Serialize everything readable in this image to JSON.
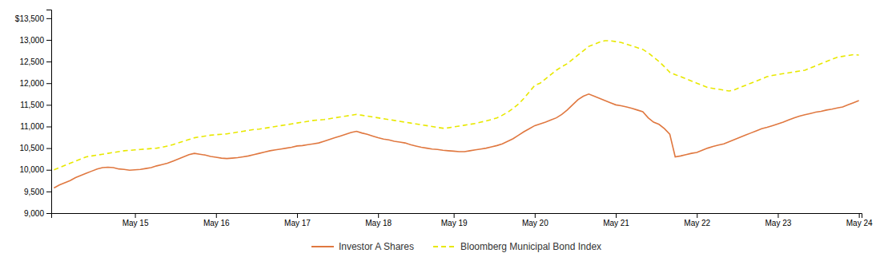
{
  "chart_data": {
    "type": "line",
    "categories": [
      null,
      null,
      null,
      null,
      null,
      null,
      null,
      null,
      null,
      null,
      null,
      null,
      null,
      null,
      null,
      "May 15",
      null,
      null,
      null,
      null,
      null,
      null,
      null,
      null,
      null,
      null,
      null,
      null,
      null,
      null,
      "May 16",
      null,
      null,
      null,
      null,
      null,
      null,
      null,
      null,
      null,
      null,
      null,
      null,
      null,
      null,
      "May 17",
      null,
      null,
      null,
      null,
      null,
      null,
      null,
      null,
      null,
      null,
      null,
      null,
      null,
      null,
      "May 18",
      null,
      null,
      null,
      null,
      null,
      null,
      null,
      null,
      null,
      null,
      null,
      null,
      null,
      "May 19",
      null,
      null,
      null,
      null,
      null,
      null,
      null,
      null,
      null,
      null,
      null,
      null,
      null,
      null,
      "May 20",
      null,
      null,
      null,
      null,
      null,
      null,
      null,
      null,
      null,
      null,
      null,
      null,
      null,
      null,
      "May 21",
      null,
      null,
      null,
      null,
      null,
      null,
      null,
      null,
      null,
      null,
      null,
      null,
      null,
      null,
      "May 22",
      null,
      null,
      null,
      null,
      null,
      null,
      null,
      null,
      null,
      null,
      null,
      null,
      null,
      null,
      "May 23",
      null,
      null,
      null,
      null,
      null,
      null,
      null,
      null,
      null,
      null,
      null,
      null,
      null,
      null,
      "May 24"
    ],
    "series": [
      {
        "name": "Investor A Shares",
        "color": "#E07840",
        "line_style": "solid",
        "values": [
          9580,
          9650,
          9700,
          9750,
          9820,
          9870,
          9920,
          9970,
          10020,
          10050,
          10060,
          10050,
          10020,
          10010,
          9990,
          10000,
          10010,
          10030,
          10050,
          10090,
          10120,
          10150,
          10200,
          10250,
          10300,
          10350,
          10380,
          10360,
          10340,
          10310,
          10290,
          10270,
          10260,
          10270,
          10280,
          10300,
          10320,
          10350,
          10380,
          10410,
          10440,
          10460,
          10480,
          10500,
          10520,
          10550,
          10560,
          10580,
          10600,
          10620,
          10660,
          10700,
          10740,
          10780,
          10820,
          10860,
          10890,
          10850,
          10820,
          10780,
          10740,
          10710,
          10690,
          10660,
          10640,
          10620,
          10580,
          10550,
          10520,
          10500,
          10480,
          10470,
          10450,
          10440,
          10430,
          10420,
          10420,
          10440,
          10460,
          10480,
          10500,
          10530,
          10560,
          10600,
          10660,
          10720,
          10800,
          10880,
          10950,
          11020,
          11060,
          11100,
          11150,
          11200,
          11280,
          11380,
          11500,
          11620,
          11700,
          11750,
          11700,
          11650,
          11600,
          11550,
          11500,
          11480,
          11450,
          11420,
          11380,
          11340,
          11200,
          11100,
          11050,
          10950,
          10820,
          10300,
          10320,
          10350,
          10380,
          10400,
          10450,
          10500,
          10540,
          10570,
          10600,
          10650,
          10700,
          10750,
          10800,
          10850,
          10900,
          10950,
          10980,
          11020,
          11060,
          11100,
          11150,
          11200,
          11240,
          11270,
          11300,
          11330,
          11350,
          11380,
          11400,
          11430,
          11450,
          11500,
          11550,
          11600
        ]
      },
      {
        "name": "Bloomberg Municipal Bond Index",
        "color": "#E8E800",
        "line_style": "dashed",
        "values": [
          10000,
          10050,
          10100,
          10150,
          10200,
          10250,
          10300,
          10320,
          10340,
          10360,
          10380,
          10400,
          10420,
          10440,
          10450,
          10460,
          10470,
          10480,
          10490,
          10500,
          10520,
          10550,
          10580,
          10620,
          10660,
          10700,
          10740,
          10760,
          10780,
          10800,
          10810,
          10820,
          10830,
          10850,
          10870,
          10890,
          10910,
          10930,
          10940,
          10960,
          10980,
          11000,
          11020,
          11040,
          11060,
          11080,
          11100,
          11120,
          11140,
          11150,
          11160,
          11180,
          11200,
          11220,
          11240,
          11260,
          11280,
          11260,
          11240,
          11220,
          11200,
          11180,
          11160,
          11140,
          11120,
          11100,
          11080,
          11060,
          11040,
          11020,
          11000,
          10980,
          10960,
          10970,
          10990,
          11010,
          11030,
          11050,
          11070,
          11100,
          11130,
          11160,
          11200,
          11260,
          11330,
          11420,
          11520,
          11650,
          11800,
          11950,
          12000,
          12100,
          12200,
          12300,
          12380,
          12450,
          12550,
          12650,
          12750,
          12850,
          12900,
          12950,
          12980,
          12980,
          12960,
          12940,
          12900,
          12860,
          12820,
          12780,
          12700,
          12600,
          12500,
          12380,
          12250,
          12200,
          12150,
          12100,
          12050,
          12000,
          11950,
          11900,
          11880,
          11860,
          11840,
          11820,
          11850,
          11900,
          11950,
          12000,
          12050,
          12100,
          12150,
          12180,
          12200,
          12220,
          12240,
          12260,
          12280,
          12300,
          12350,
          12400,
          12450,
          12500,
          12550,
          12600,
          12620,
          12640,
          12660,
          12650
        ]
      }
    ],
    "ylim": [
      9000,
      13700
    ],
    "yticks": [
      {
        "value": 9000,
        "label": "9,000"
      },
      {
        "value": 9500,
        "label": "9,500"
      },
      {
        "value": 10000,
        "label": "10,000"
      },
      {
        "value": 10500,
        "label": "10,500"
      },
      {
        "value": 11000,
        "label": "11,000"
      },
      {
        "value": 11500,
        "label": "11,500"
      },
      {
        "value": 12000,
        "label": "12,000"
      },
      {
        "value": 12500,
        "label": "12,500"
      },
      {
        "value": 13000,
        "label": "13,000"
      },
      {
        "value": 13500,
        "label": "$13,500"
      }
    ],
    "grid": false,
    "legend": "bottom"
  }
}
